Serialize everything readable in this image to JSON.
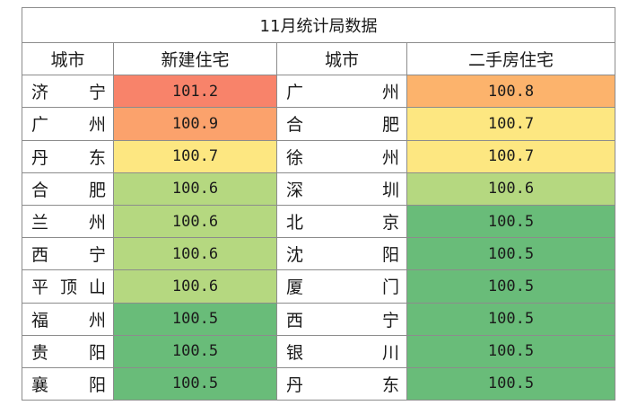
{
  "title": "11月统计局数据",
  "headers": {
    "city1": "城市",
    "new": "新建住宅",
    "city2": "城市",
    "second": "二手房住宅"
  },
  "colors": {
    "r1012": "#f8836a",
    "r1009": "#fba26c",
    "r1008": "#fcb36c",
    "r1007": "#fde781",
    "r1006": "#b5d880",
    "r1005": "#69bc79"
  },
  "rows": [
    {
      "c1": "济宁",
      "v1": "101.2",
      "c2": "广州",
      "v2": "100.8"
    },
    {
      "c1": "广州",
      "v1": "100.9",
      "c2": "合肥",
      "v2": "100.7"
    },
    {
      "c1": "丹东",
      "v1": "100.7",
      "c2": "徐州",
      "v2": "100.7"
    },
    {
      "c1": "合肥",
      "v1": "100.6",
      "c2": "深圳",
      "v2": "100.6"
    },
    {
      "c1": "兰州",
      "v1": "100.6",
      "c2": "北京",
      "v2": "100.5"
    },
    {
      "c1": "西宁",
      "v1": "100.6",
      "c2": "沈阳",
      "v2": "100.5"
    },
    {
      "c1": "平顶山",
      "v1": "100.6",
      "c2": "厦门",
      "v2": "100.5"
    },
    {
      "c1": "福州",
      "v1": "100.5",
      "c2": "西宁",
      "v2": "100.5"
    },
    {
      "c1": "贵阳",
      "v1": "100.5",
      "c2": "银川",
      "v2": "100.5"
    },
    {
      "c1": "襄阳",
      "v1": "100.5",
      "c2": "丹东",
      "v2": "100.5"
    }
  ]
}
